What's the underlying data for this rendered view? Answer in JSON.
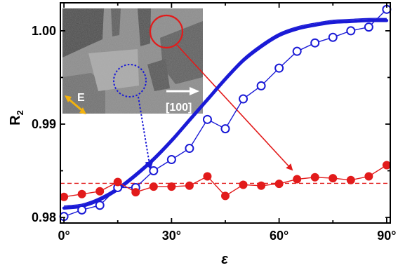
{
  "chart_data": {
    "type": "scatter",
    "title": "",
    "xlabel": "ε",
    "ylabel": "R",
    "ylabel_subscript": "2",
    "xlim": [
      -1,
      91
    ],
    "ylim": [
      0.9794,
      1.003
    ],
    "xticks": [
      0,
      30,
      60,
      90
    ],
    "xtick_labels": [
      "0°",
      "30°",
      "60°",
      "90°"
    ],
    "yticks": [
      0.98,
      0.99,
      1.0
    ],
    "ytick_labels": [
      "0.98",
      "0.99",
      "1.00"
    ],
    "grid": false,
    "legend": null,
    "series": [
      {
        "marker": "open-circle",
        "color": "#1a1ad6",
        "x": [
          0,
          5,
          10,
          15,
          20,
          25,
          30,
          35,
          40,
          45,
          50,
          55,
          60,
          65,
          70,
          75,
          80,
          85,
          90
        ],
        "y": [
          0.9801,
          0.9808,
          0.9813,
          0.9832,
          0.9832,
          0.985,
          0.9862,
          0.9874,
          0.9905,
          0.9895,
          0.9927,
          0.9941,
          0.996,
          0.9978,
          0.9987,
          0.9993,
          1.0,
          1.0004,
          1.0023
        ],
        "fit": {
          "style": "thick-solid",
          "x": [
            0,
            5,
            10,
            15,
            20,
            25,
            30,
            35,
            40,
            45,
            50,
            55,
            60,
            65,
            70,
            75,
            80,
            85,
            90
          ],
          "y": [
            0.981,
            0.9812,
            0.9819,
            0.983,
            0.9845,
            0.9862,
            0.9882,
            0.9904,
            0.9926,
            0.9948,
            0.9968,
            0.9983,
            0.9995,
            1.0002,
            1.0006,
            1.0009,
            1.001,
            1.0011,
            1.0011
          ]
        }
      },
      {
        "marker": "filled-circle",
        "color": "#e21b1b",
        "x": [
          0,
          5,
          10,
          15,
          20,
          25,
          30,
          35,
          40,
          45,
          50,
          55,
          60,
          65,
          70,
          75,
          80,
          85,
          90
        ],
        "y": [
          0.9822,
          0.9825,
          0.9828,
          0.9838,
          0.9827,
          0.9833,
          0.9833,
          0.9834,
          0.9844,
          0.9823,
          0.9835,
          0.9834,
          0.9836,
          0.9841,
          0.9843,
          0.9842,
          0.984,
          0.9844,
          0.9856
        ],
        "reference": {
          "style": "dashed",
          "y": 0.98365
        }
      }
    ]
  },
  "inset": {
    "e_label": "E",
    "direction_label": "[100]",
    "colors": {
      "e_arrow": "#f2b20f",
      "red": "#e21b1b",
      "blue": "#1a1ad6",
      "white": "#ffffff"
    }
  }
}
